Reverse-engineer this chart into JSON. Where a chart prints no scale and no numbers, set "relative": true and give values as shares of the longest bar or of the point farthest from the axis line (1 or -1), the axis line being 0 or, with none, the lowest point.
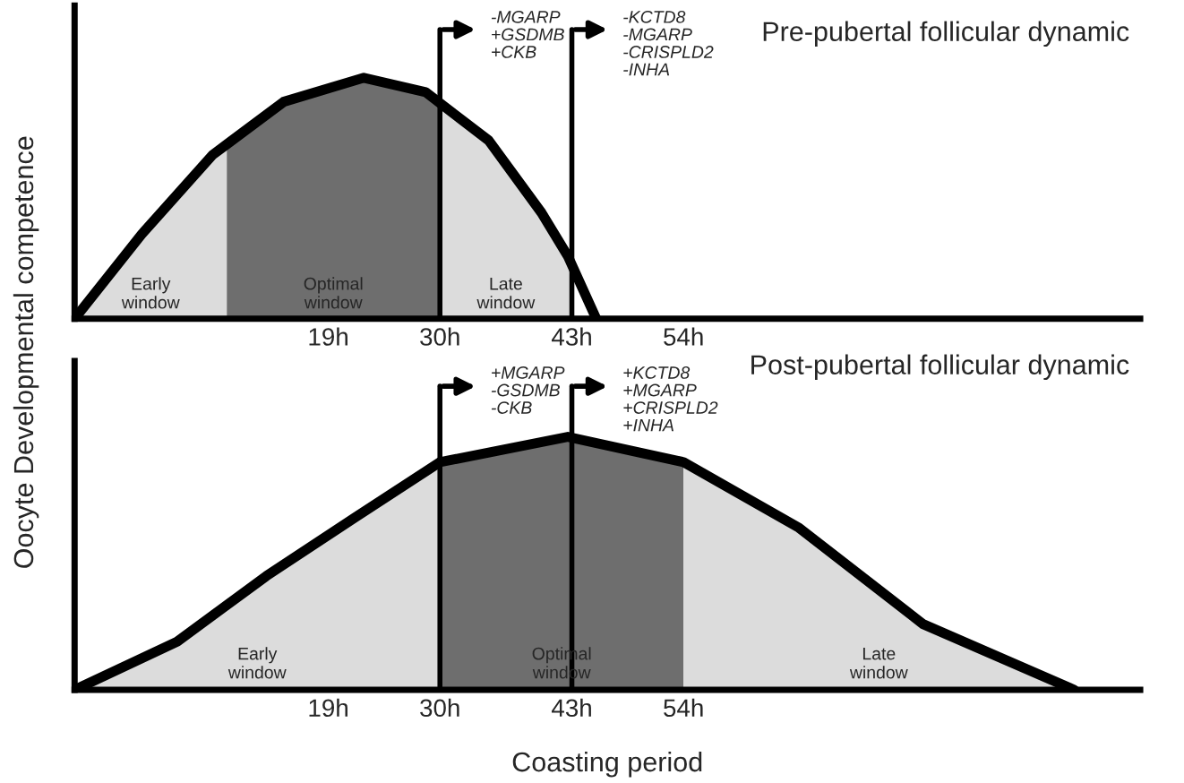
{
  "chart_data": [
    {
      "type": "line",
      "relative": true,
      "title": "Pre-pubertal follicular dynamic",
      "ylabel": "Oocyte Developmental competence",
      "xlim": [
        -6,
        99
      ],
      "xticks": [
        {
          "value": 19,
          "label": "19h"
        },
        {
          "value": 30,
          "label": "30h"
        },
        {
          "value": 43,
          "label": "43h"
        },
        {
          "value": 54,
          "label": "54h"
        }
      ],
      "tick_labels": "x",
      "series": [
        {
          "type": "area",
          "color": "#dcdcdc",
          "x": [
            -6,
            0.6,
            7.6,
            9
          ],
          "values": [
            0,
            0.35,
            0.68,
            0.71
          ]
        },
        {
          "type": "area",
          "color": "#6e6e6e",
          "x": [
            9,
            14.6,
            22.5,
            28.6,
            30
          ],
          "values": [
            0.71,
            0.9,
            1,
            0.94,
            0.9
          ]
        },
        {
          "type": "area",
          "color": "#dcdcdc",
          "x": [
            30,
            34.8,
            40,
            42.6,
            43
          ],
          "values": [
            0.9,
            0.74,
            0.44,
            0.26,
            0.2
          ]
        },
        {
          "type": "line",
          "color": "#000000",
          "x": [
            -6,
            0.6,
            7.6,
            14.6,
            22.5,
            28.6,
            34.8,
            40,
            42.6,
            45.4
          ],
          "values": [
            0,
            0.35,
            0.68,
            0.9,
            1,
            0.94,
            0.74,
            0.44,
            0.26,
            0
          ]
        }
      ],
      "annotations": [
        "Early\nwindow",
        "Optimal\nwindow",
        "Late\nwindow"
      ],
      "ref_lines": [
        {
          "axis": "x",
          "value": 30,
          "label": "-MGARP\n+GSDMB\n+CKB"
        },
        {
          "axis": "x",
          "value": 43,
          "label": "-KCTD8\n-MGARP\n-CRISPLD2\n-INHA"
        }
      ]
    },
    {
      "type": "line",
      "relative": true,
      "title": "Post-pubertal follicular dynamic",
      "xlabel": "Coasting period",
      "xlim": [
        -6,
        99
      ],
      "xticks": [
        {
          "value": 19,
          "label": "19h"
        },
        {
          "value": 30,
          "label": "30h"
        },
        {
          "value": 43,
          "label": "43h"
        },
        {
          "value": 54,
          "label": "54h"
        }
      ],
      "tick_labels": "x",
      "series": [
        {
          "type": "area",
          "color": "#dcdcdc",
          "x": [
            -6,
            4.1,
            12.9,
            21.6,
            30
          ],
          "values": [
            0,
            0.19,
            0.45,
            0.68,
            0.9
          ]
        },
        {
          "type": "area",
          "color": "#6e6e6e",
          "x": [
            30,
            42.6,
            54
          ],
          "values": [
            0.9,
            1,
            0.9
          ]
        },
        {
          "type": "area",
          "color": "#dcdcdc",
          "x": [
            54,
            65.4,
            77.6,
            92.5
          ],
          "values": [
            0.9,
            0.64,
            0.26,
            0
          ]
        },
        {
          "type": "line",
          "color": "#000000",
          "x": [
            -6,
            4.1,
            12.9,
            21.6,
            30,
            42.6,
            54,
            65.4,
            77.6,
            92.5
          ],
          "values": [
            0,
            0.19,
            0.45,
            0.68,
            0.9,
            1,
            0.9,
            0.64,
            0.26,
            0
          ]
        }
      ],
      "annotations": [
        "Early\nwindow",
        "Optimal\nwindow",
        "Late\nwindow"
      ],
      "ref_lines": [
        {
          "axis": "x",
          "value": 30,
          "label": "+MGARP\n-GSDMB\n-CKB"
        },
        {
          "axis": "x",
          "value": 43,
          "label": "+KCTD8\n+MGARP\n+CRISPLD2\n+INHA"
        }
      ]
    }
  ]
}
